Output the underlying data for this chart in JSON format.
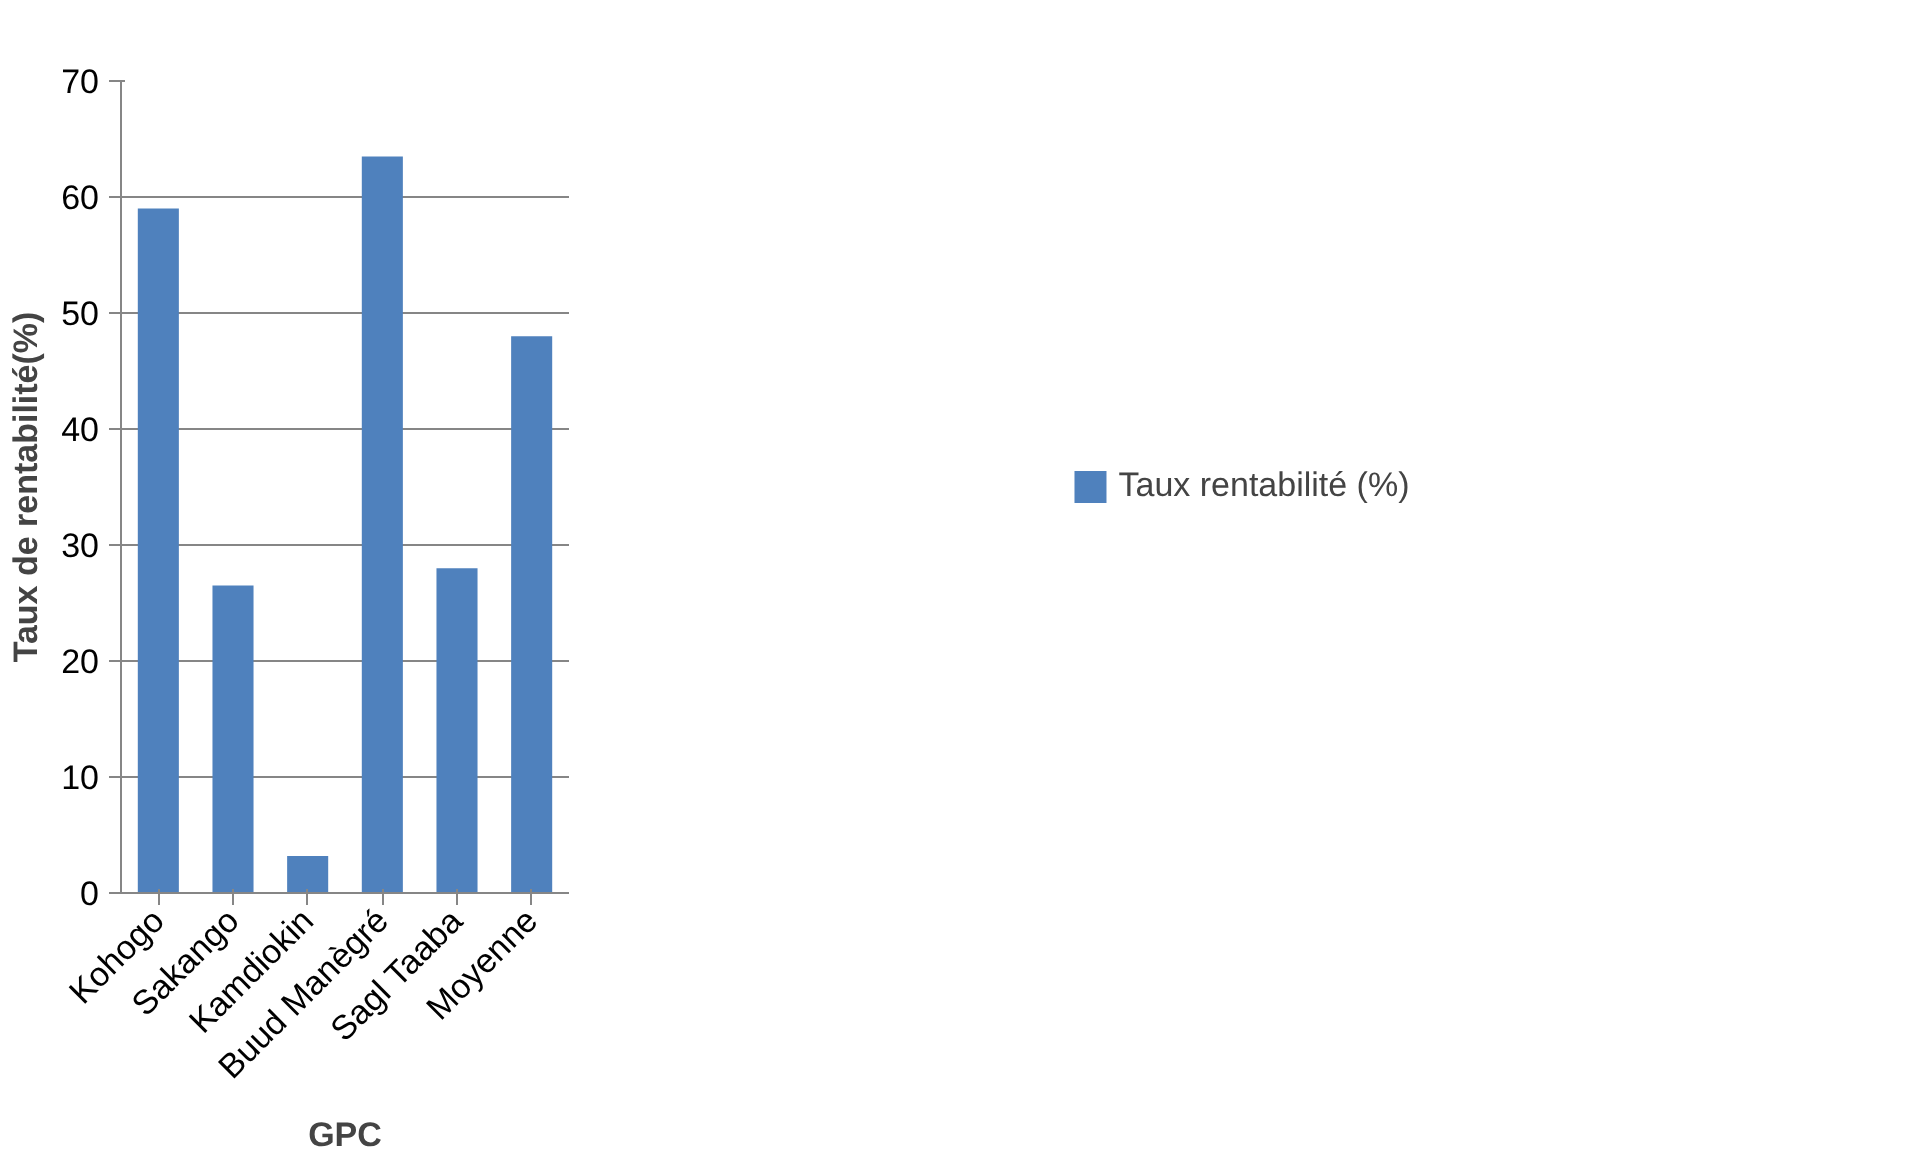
{
  "chart_data": {
    "type": "bar",
    "xlabel": "GPC",
    "ylabel": "Taux de rentabilité(%)",
    "categories": [
      "Kohogo",
      "Sakango",
      "Kamdiokin",
      "Buud Manègré",
      "Sagl Taaba",
      "Moyenne"
    ],
    "series": [
      {
        "name": "Taux rentabilité (%)",
        "color": "#4f81bd",
        "values": [
          59,
          26.5,
          3.2,
          63.5,
          28,
          48
        ]
      }
    ],
    "ylim": [
      0,
      70
    ],
    "yticks": [
      0,
      10,
      20,
      30,
      40,
      50,
      60,
      70
    ],
    "grid": "y",
    "legend": "right"
  }
}
